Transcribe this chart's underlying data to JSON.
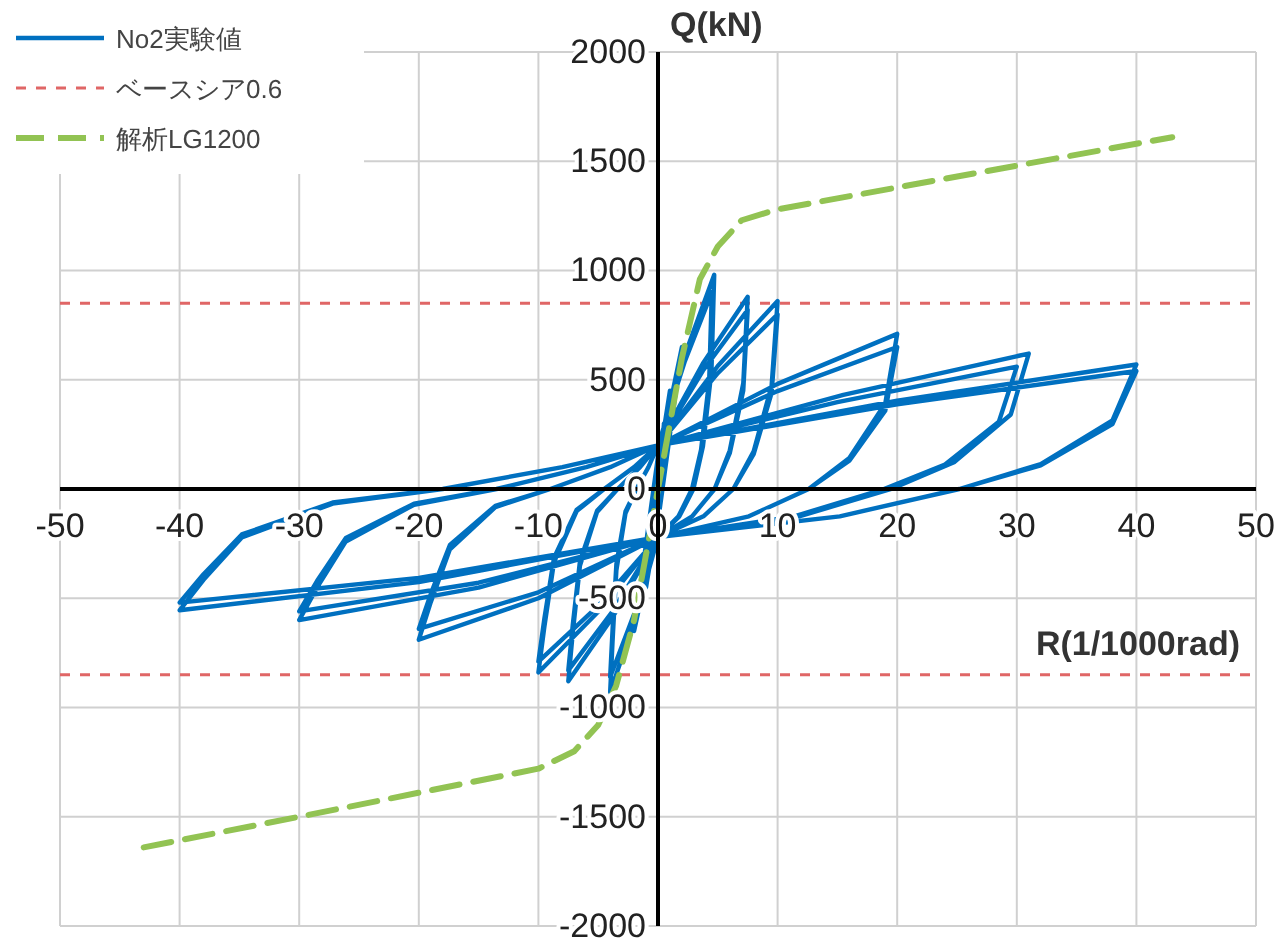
{
  "chart_data": {
    "type": "line",
    "xlabel": "R(1/1000rad)",
    "ylabel": "Q(kN)",
    "xlim": [
      -50,
      50
    ],
    "xticks": [
      -50,
      -40,
      -30,
      -20,
      -10,
      0,
      10,
      20,
      30,
      40,
      50
    ],
    "ylim": [
      -2000,
      2000
    ],
    "yticks": [
      -2000,
      -1500,
      -1000,
      -500,
      0,
      500,
      1000,
      1500,
      2000
    ],
    "grid": true,
    "legend": "top left",
    "marker": "none",
    "series": [
      {
        "name": "No2実験値",
        "color": "#0070c0",
        "line_style": "solid",
        "x": [
          0,
          0.5,
          0,
          -0.5,
          0,
          1,
          0,
          -1,
          0,
          2,
          0,
          -2,
          0,
          2.35,
          4.7,
          4.47,
          3.76,
          2.96,
          1.79,
          0,
          -2,
          -4,
          -3.8,
          -3.48,
          -2.72,
          -1.8,
          -0.8,
          0,
          2.25,
          4.5,
          4.28,
          3.6,
          2.84,
          1.71,
          0,
          -2,
          -4,
          -3.8,
          -3.48,
          -2.72,
          -1.8,
          -0.8,
          0,
          3.75,
          7.5,
          7.13,
          6,
          4.73,
          2.85,
          0,
          -3.75,
          -7.5,
          -7.13,
          -6.53,
          -5.1,
          -3.38,
          -1.5,
          0,
          3.75,
          7.5,
          7.13,
          6,
          4.73,
          2.85,
          0,
          -3.75,
          -7.5,
          -7.13,
          -6.53,
          -5.1,
          -3.38,
          -1.5,
          0,
          5,
          10,
          9.5,
          8,
          6.3,
          3.8,
          0,
          -5,
          -10,
          -9.5,
          -8.7,
          -6.8,
          -4.5,
          -2,
          0,
          5,
          10,
          9.5,
          8,
          6.3,
          3.8,
          0,
          -5,
          -10,
          -9.5,
          -8.7,
          -6.8,
          -4.5,
          -2,
          0,
          10,
          20,
          19,
          16,
          12.6,
          7.6,
          0,
          -10,
          -20,
          -19,
          -17.4,
          -13.6,
          -9,
          -4,
          0,
          10,
          20,
          19,
          16,
          12.6,
          7.6,
          0,
          -10,
          -20,
          -19,
          -17.4,
          -13.6,
          -9,
          -4,
          0,
          15.5,
          31,
          29.5,
          24.8,
          19.5,
          11.8,
          0,
          -15,
          -30,
          -28.5,
          -26.1,
          -20.4,
          -13.5,
          -6,
          0,
          15,
          30,
          28.5,
          24,
          18.9,
          11.4,
          0,
          -15,
          -30,
          -28.5,
          -26.1,
          -20.4,
          -13.5,
          -6,
          0,
          20,
          40,
          38,
          32,
          25.2,
          15.2,
          0,
          -20,
          -40,
          -38,
          -34.8,
          -27.2,
          -18,
          -8,
          0,
          20,
          40,
          38,
          32,
          25.2,
          15.2,
          0,
          -20,
          -40,
          -38,
          -34.8,
          -27.2,
          -18,
          -8,
          0
        ],
        "values": [
          0,
          300,
          -100,
          -300,
          100,
          450,
          -120,
          -450,
          120,
          650,
          -150,
          -650,
          150,
          629,
          980,
          539,
          196,
          0,
          -125,
          -220,
          -610,
          -930,
          -698,
          -372,
          -112,
          0,
          100,
          200,
          585,
          900,
          495,
          180,
          0,
          -125,
          -220,
          -572,
          -860,
          -645,
          -344,
          -103,
          0,
          100,
          200,
          574,
          880,
          484,
          176,
          0,
          -125,
          -220,
          -583,
          -880,
          -660,
          -352,
          -106,
          0,
          100,
          200,
          541,
          820,
          451,
          164,
          0,
          -125,
          -220,
          -556,
          -830,
          -623,
          -332,
          -100,
          0,
          100,
          200,
          563,
          860,
          473,
          172,
          0,
          -125,
          -220,
          -562,
          -840,
          -630,
          -336,
          -101,
          0,
          100,
          200,
          530,
          800,
          440,
          160,
          0,
          -125,
          -220,
          -535,
          -790,
          -593,
          -316,
          -95,
          0,
          100,
          200,
          481,
          710,
          391,
          142,
          0,
          -125,
          -220,
          -500,
          -690,
          -518,
          -276,
          -83,
          0,
          100,
          200,
          448,
          650,
          358,
          130,
          0,
          -125,
          -220,
          -473,
          -640,
          -480,
          -256,
          -77,
          0,
          100,
          200,
          431,
          620,
          341,
          124,
          0,
          -125,
          -220,
          -451,
          -600,
          -450,
          -240,
          -72,
          0,
          100,
          200,
          398,
          560,
          308,
          112,
          0,
          -125,
          -220,
          -429,
          -560,
          -420,
          -224,
          -67,
          0,
          100,
          200,
          404,
          570,
          314,
          114,
          0,
          -125,
          -220,
          -426,
          -555,
          -416,
          -222,
          -67,
          0,
          100,
          200,
          388,
          540,
          297,
          108,
          0,
          -125,
          -220,
          -407,
          -520,
          -390,
          -208,
          -62,
          0,
          100,
          200
        ]
      },
      {
        "name": "解析LG1200",
        "color": "#92c353",
        "line_style": "dashed",
        "x": [
          -43,
          -30,
          -20,
          -10,
          -7,
          -5,
          -3.5,
          -2,
          -1,
          0,
          1,
          2,
          3.5,
          5,
          7,
          10,
          20,
          30,
          43
        ],
        "values": [
          -1640,
          -1500,
          -1390,
          -1280,
          -1200,
          -1080,
          -900,
          -600,
          -300,
          0,
          300,
          600,
          960,
          1110,
          1230,
          1280,
          1380,
          1480,
          1610
        ]
      }
    ],
    "ref_lines": [
      {
        "axis": "y",
        "value": 850,
        "label": "ベースシア0.6",
        "color": "#e06666",
        "line_style": "dashed"
      },
      {
        "axis": "y",
        "value": -850,
        "color": "#e06666",
        "line_style": "dashed"
      }
    ]
  }
}
